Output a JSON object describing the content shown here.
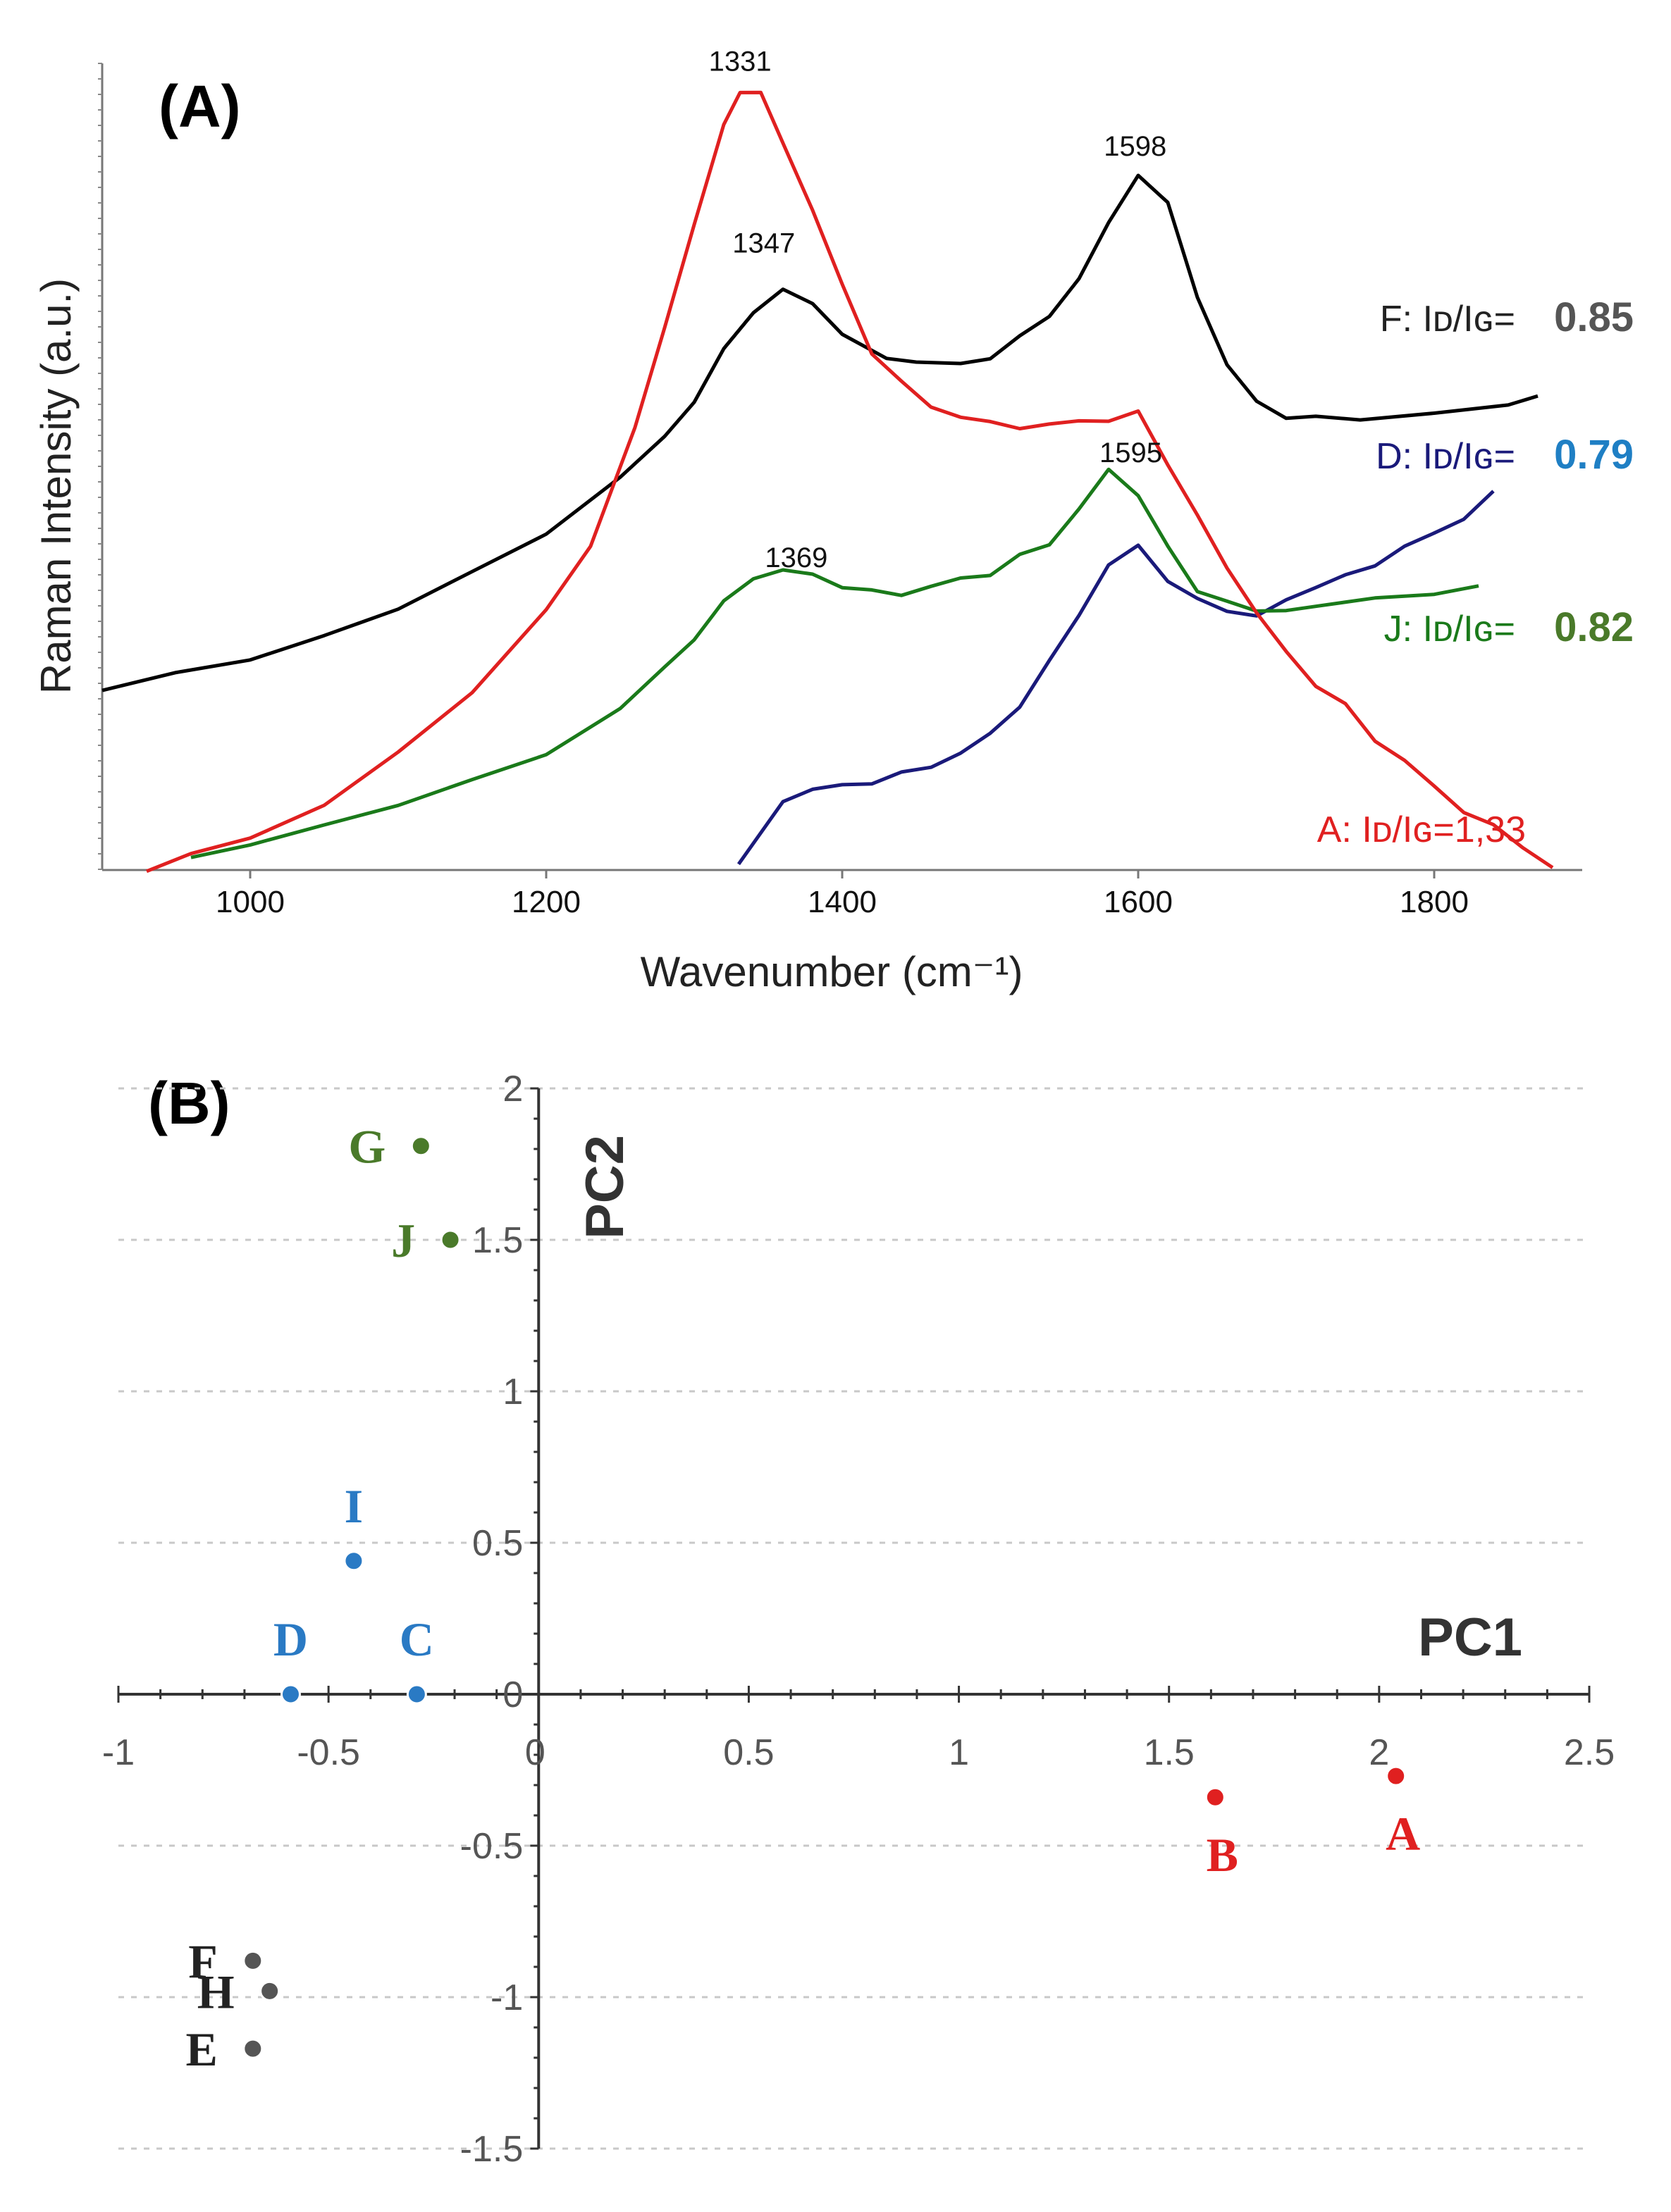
{
  "chart_data": [
    {
      "panel": "(A)",
      "type": "line",
      "xlabel": "Wavenumber (cm⁻¹)",
      "ylabel": "Raman Intensity (a.u.)",
      "xlim": [
        900,
        1900
      ],
      "ylim": [
        0,
        1.0
      ],
      "xticks": [
        1000,
        1200,
        1400,
        1600,
        1800
      ],
      "peak_labels": [
        {
          "text": "1331",
          "x": 1331,
          "y": 0.975,
          "series": "A"
        },
        {
          "text": "1347",
          "x": 1347,
          "y": 0.75,
          "series": "F"
        },
        {
          "text": "1598",
          "x": 1598,
          "y": 0.87,
          "series": "F"
        },
        {
          "text": "1595",
          "x": 1595,
          "y": 0.49,
          "series": "J"
        },
        {
          "text": "1369",
          "x": 1369,
          "y": 0.36,
          "series": "J"
        }
      ],
      "series": [
        {
          "name": "F",
          "color": "#000000",
          "label": "F:  Iᴅ/Iɢ=",
          "ratio": "0.85",
          "ratio_color": "#555555",
          "x": [
            900,
            950,
            1000,
            1050,
            1100,
            1150,
            1200,
            1250,
            1280,
            1300,
            1320,
            1340,
            1360,
            1380,
            1400,
            1430,
            1450,
            1480,
            1500,
            1520,
            1540,
            1560,
            1580,
            1600,
            1620,
            1640,
            1660,
            1680,
            1700,
            1720,
            1750,
            1800,
            1850,
            1870
          ],
          "y": [
            0.22,
            0.24,
            0.26,
            0.29,
            0.33,
            0.37,
            0.42,
            0.48,
            0.53,
            0.58,
            0.64,
            0.69,
            0.72,
            0.7,
            0.67,
            0.64,
            0.63,
            0.63,
            0.64,
            0.66,
            0.69,
            0.73,
            0.8,
            0.86,
            0.82,
            0.71,
            0.62,
            0.58,
            0.56,
            0.56,
            0.56,
            0.57,
            0.58,
            0.59
          ]
        },
        {
          "name": "D",
          "color": "#1a1a7a",
          "label": "D:  Iᴅ/Iɢ=",
          "ratio": "0.79",
          "ratio_color": "#1f7fc4",
          "x": [
            1330,
            1360,
            1380,
            1400,
            1420,
            1440,
            1460,
            1480,
            1500,
            1520,
            1540,
            1560,
            1580,
            1600,
            1620,
            1640,
            1660,
            1680,
            1700,
            1720,
            1740,
            1760,
            1780,
            1800,
            1820,
            1840
          ],
          "y": [
            0.0,
            0.08,
            0.1,
            0.1,
            0.11,
            0.12,
            0.13,
            0.15,
            0.17,
            0.21,
            0.26,
            0.32,
            0.38,
            0.4,
            0.36,
            0.33,
            0.32,
            0.31,
            0.33,
            0.35,
            0.36,
            0.38,
            0.4,
            0.42,
            0.44,
            0.47
          ]
        },
        {
          "name": "J",
          "color": "#1a7a1a",
          "label": "J:  Iᴅ/Iɢ=",
          "ratio": "0.82",
          "ratio_color": "#4a7a2a",
          "x": [
            960,
            1000,
            1050,
            1100,
            1150,
            1200,
            1250,
            1280,
            1300,
            1320,
            1340,
            1360,
            1380,
            1400,
            1420,
            1440,
            1460,
            1480,
            1500,
            1520,
            1540,
            1560,
            1580,
            1600,
            1620,
            1640,
            1660,
            1680,
            1700,
            1720,
            1760,
            1800,
            1830
          ],
          "y": [
            0.02,
            0.03,
            0.05,
            0.08,
            0.11,
            0.15,
            0.2,
            0.25,
            0.29,
            0.33,
            0.36,
            0.37,
            0.36,
            0.35,
            0.34,
            0.34,
            0.35,
            0.36,
            0.37,
            0.39,
            0.41,
            0.45,
            0.5,
            0.47,
            0.4,
            0.35,
            0.33,
            0.32,
            0.32,
            0.32,
            0.33,
            0.34,
            0.35
          ]
        },
        {
          "name": "A",
          "color": "#e02020",
          "label": "A: Iᴅ/Iɢ=1,33",
          "ratio": "",
          "ratio_color": "#e02020",
          "x": [
            930,
            960,
            1000,
            1050,
            1100,
            1150,
            1200,
            1230,
            1260,
            1280,
            1300,
            1320,
            1331,
            1345,
            1360,
            1380,
            1400,
            1420,
            1440,
            1460,
            1480,
            1500,
            1520,
            1540,
            1560,
            1580,
            1600,
            1620,
            1640,
            1660,
            1680,
            1700,
            1720,
            1740,
            1760,
            1780,
            1800,
            1820,
            1840,
            1860,
            1880
          ],
          "y": [
            0.0,
            0.02,
            0.04,
            0.08,
            0.14,
            0.22,
            0.32,
            0.4,
            0.55,
            0.68,
            0.8,
            0.93,
            0.97,
            0.96,
            0.9,
            0.82,
            0.72,
            0.64,
            0.6,
            0.57,
            0.56,
            0.55,
            0.55,
            0.55,
            0.56,
            0.56,
            0.57,
            0.51,
            0.44,
            0.38,
            0.32,
            0.27,
            0.23,
            0.2,
            0.16,
            0.13,
            0.1,
            0.07,
            0.05,
            0.03,
            0.0
          ]
        }
      ]
    },
    {
      "panel": "(B)",
      "type": "scatter",
      "xlabel": "PC1",
      "ylabel": "PC2",
      "xlim": [
        -1,
        2.5
      ],
      "ylim": [
        -1.5,
        2
      ],
      "xticks": [
        -1,
        -0.5,
        0,
        0.5,
        1,
        1.5,
        2,
        2.5
      ],
      "xtick_labels": [
        "-1",
        "-0.5",
        "0",
        "0.5",
        "1",
        "1.5",
        "2",
        "2.5"
      ],
      "yticks": [
        -1.5,
        -1,
        -0.5,
        0.5,
        1,
        1.5,
        2
      ],
      "ytick_labels": [
        "-1.5",
        "-1",
        "-0.5",
        "0.5",
        "1",
        "1.5",
        "2"
      ],
      "origin_x_label": "0",
      "origin_y_label": "0",
      "points": [
        {
          "label": "G",
          "x": -0.28,
          "y": 1.81,
          "color": "#4a7a2a",
          "label_pos": "left"
        },
        {
          "label": "J",
          "x": -0.21,
          "y": 1.5,
          "color": "#4a7a2a",
          "label_pos": "left"
        },
        {
          "label": "I",
          "x": -0.44,
          "y": 0.44,
          "color": "#2a7ac4",
          "label_pos": "above"
        },
        {
          "label": "C",
          "x": -0.29,
          "y": 0.0,
          "color": "#2a7ac4",
          "label_pos": "above"
        },
        {
          "label": "D",
          "x": -0.59,
          "y": 0.0,
          "color": "#2a7ac4",
          "label_pos": "above"
        },
        {
          "label": "B",
          "x": 1.61,
          "y": -0.34,
          "color": "#e02020",
          "label_pos": "below"
        },
        {
          "label": "A",
          "x": 2.04,
          "y": -0.27,
          "color": "#e02020",
          "label_pos": "below"
        },
        {
          "label": "F",
          "x": -0.68,
          "y": -0.88,
          "color": "#555555",
          "label_pos": "left"
        },
        {
          "label": "H",
          "x": -0.64,
          "y": -0.98,
          "color": "#555555",
          "label_pos": "left"
        },
        {
          "label": "E",
          "x": -0.68,
          "y": -1.17,
          "color": "#555555",
          "label_pos": "left"
        }
      ]
    }
  ]
}
